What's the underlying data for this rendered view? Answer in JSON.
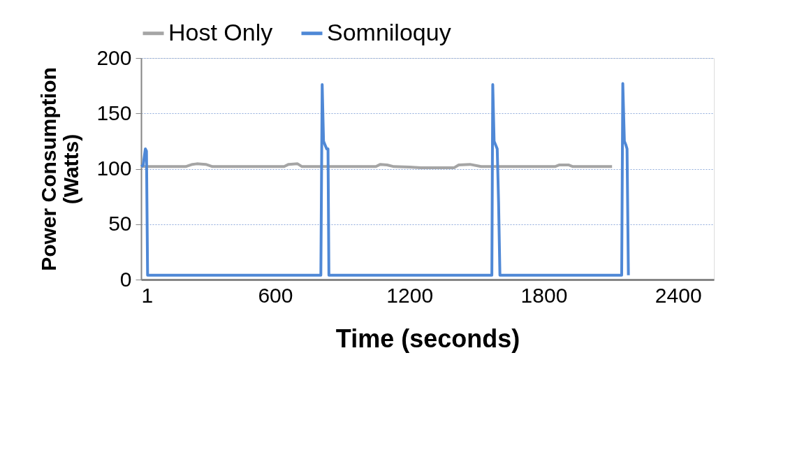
{
  "chart_data": {
    "type": "line",
    "xlabel": "Time (seconds)",
    "ylabel": "Power Consumption (Watts)",
    "xlim": [
      1,
      2560
    ],
    "xticks": [
      1,
      600,
      1200,
      1800,
      2400
    ],
    "ylim": [
      0,
      200
    ],
    "yticks": [
      0,
      50,
      100,
      150,
      200
    ],
    "grid": "y",
    "legend": "top",
    "marker": "none",
    "line_style": "solid",
    "series": [
      {
        "name": "Host Only",
        "color": "#a5a5a5",
        "x": [
          1,
          200,
          230,
          250,
          290,
          320,
          500,
          640,
          660,
          700,
          720,
          900,
          1050,
          1070,
          1100,
          1130,
          1200,
          1250,
          1400,
          1420,
          1470,
          1520,
          1540,
          1700,
          1850,
          1870,
          1910,
          1930,
          2105
        ],
        "values": [
          102,
          102,
          104,
          104.5,
          104,
          102,
          102,
          102,
          104,
          104.5,
          102,
          102,
          102,
          104,
          103.5,
          102,
          101.5,
          101,
          101,
          103.5,
          104,
          102,
          102,
          102,
          102,
          103.5,
          103.5,
          102,
          102
        ]
      },
      {
        "name": "Somniloquy",
        "color": "#4f88d6",
        "x": [
          1,
          10,
          20,
          25,
          30,
          400,
          804,
          810,
          816,
          822,
          830,
          836,
          840,
          1200,
          1568,
          1572,
          1578,
          1584,
          1592,
          1598,
          1604,
          1800,
          2148,
          2153,
          2160,
          2166,
          2172,
          2178
        ],
        "values": [
          102,
          103,
          118,
          116,
          4,
          4,
          4,
          176,
          125,
          122,
          118,
          118,
          4,
          4,
          4,
          176,
          125,
          122,
          118,
          70,
          4,
          4,
          4,
          177,
          125,
          122,
          118,
          4
        ]
      }
    ]
  }
}
